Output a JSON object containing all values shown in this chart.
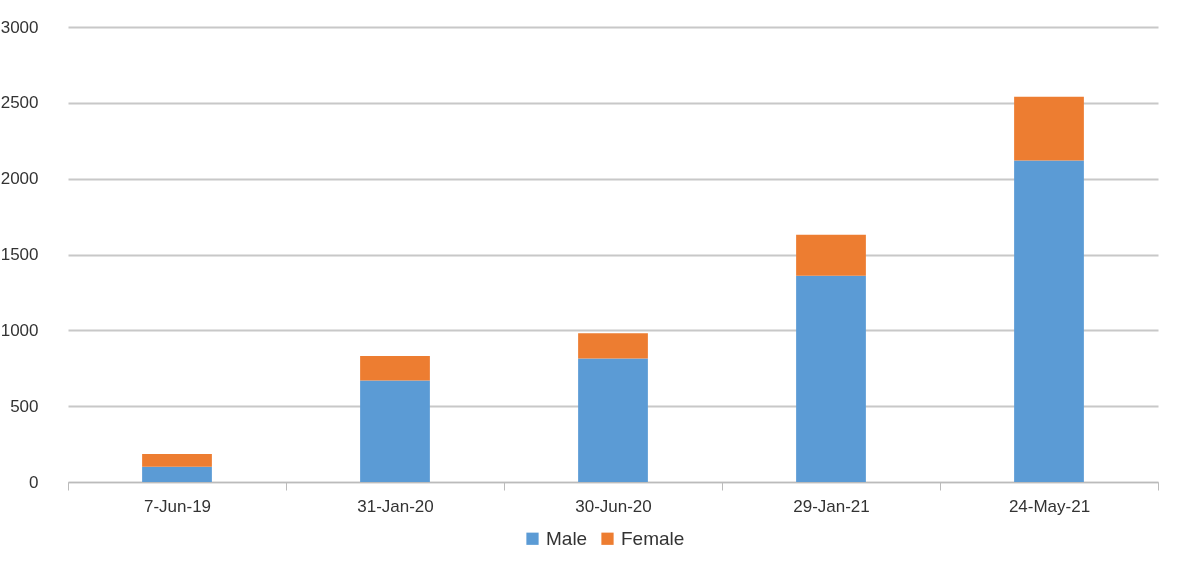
{
  "chart_data": {
    "type": "bar",
    "stacked": true,
    "categories": [
      "7-Jun-19",
      "31-Jan-20",
      "30-Jun-20",
      "29-Jan-21",
      "24-May-21"
    ],
    "series": [
      {
        "name": "Male",
        "color": "#5b9bd5",
        "values": [
          100,
          670,
          815,
          1360,
          2120
        ]
      },
      {
        "name": "Female",
        "color": "#ed7d31",
        "values": [
          85,
          160,
          165,
          270,
          420
        ]
      }
    ],
    "ylim": [
      0,
      3000
    ],
    "yticks": [
      0,
      500,
      1000,
      1500,
      2000,
      2500,
      3000
    ],
    "grid": "y",
    "legend": "bottom"
  }
}
